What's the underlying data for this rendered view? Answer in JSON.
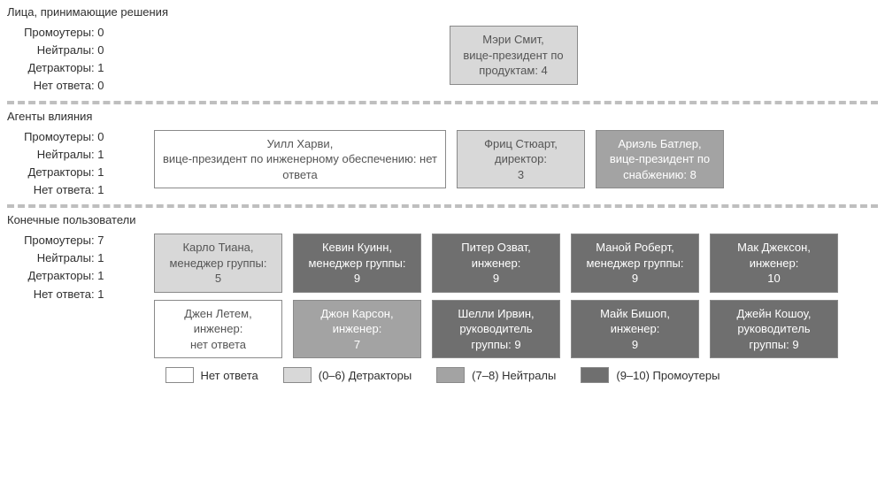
{
  "colors": {
    "no_response": {
      "bg": "#ffffff",
      "fg": "#555555"
    },
    "detractor": {
      "bg": "#d8d8d8",
      "fg": "#555555"
    },
    "neutral": {
      "bg": "#a3a3a3",
      "fg": "#ffffff"
    },
    "promoter": {
      "bg": "#6f6f6f",
      "fg": "#ffffff"
    }
  },
  "stat_labels": {
    "promoters": "Промоутеры",
    "neutrals": "Нейтралы",
    "detractors": "Детракторы",
    "no_response": "Нет ответа"
  },
  "legend": [
    {
      "category": "no_response",
      "label": "Нет ответа"
    },
    {
      "category": "detractor",
      "label": "(0–6) Детракторы"
    },
    {
      "category": "neutral",
      "label": "(7–8) Нейтралы"
    },
    {
      "category": "promoter",
      "label": "(9–10) Промоутеры"
    }
  ],
  "sections": [
    {
      "title": "Лица, принимающие решения",
      "stats": {
        "promoters": 0,
        "neutrals": 0,
        "detractors": 1,
        "no_response": 0
      },
      "center": true,
      "cards": [
        {
          "name": "Мэри Смит,",
          "role_score": "вице-президент по продуктам: 4",
          "category": "detractor"
        }
      ]
    },
    {
      "title": "Агенты влияния",
      "stats": {
        "promoters": 0,
        "neutrals": 1,
        "detractors": 1,
        "no_response": 1
      },
      "center": false,
      "cards": [
        {
          "name": "Уилл Харви,",
          "role_score": "вице-президент по инженерному обеспечению:  нет ответа",
          "category": "no_response",
          "wide": true
        },
        {
          "name": "Фриц Стюарт,",
          "role_score": "директор:",
          "score_line": "3",
          "category": "detractor"
        },
        {
          "name": "Ариэль Батлер,",
          "role_score": "вице-президент по снабжению: 8",
          "category": "neutral"
        }
      ]
    },
    {
      "title": "Конечные пользователи",
      "stats": {
        "promoters": 7,
        "neutrals": 1,
        "detractors": 1,
        "no_response": 1
      },
      "center": false,
      "cards": [
        {
          "name": "Карло Тиана,",
          "role_score": "менеджер группы:",
          "score_line": "5",
          "category": "detractor"
        },
        {
          "name": "Кевин Куинн,",
          "role_score": "менеджер группы:",
          "score_line": "9",
          "category": "promoter"
        },
        {
          "name": "Питер Озват,",
          "role_score": "инженер:",
          "score_line": "9",
          "category": "promoter"
        },
        {
          "name": "Маной Роберт,",
          "role_score": "менеджер группы:",
          "score_line": "9",
          "category": "promoter"
        },
        {
          "name": "Мак Джексон,",
          "role_score": "инженер:",
          "score_line": "10",
          "category": "promoter"
        },
        {
          "name": "Джен Летем,",
          "role_score": "инженер:",
          "score_line": "нет ответа",
          "category": "no_response"
        },
        {
          "name": "Джон Карсон,",
          "role_score": "инженер:",
          "score_line": "7",
          "category": "neutral"
        },
        {
          "name": "Шелли Ирвин,",
          "role_score": "руководитель группы:  9",
          "category": "promoter"
        },
        {
          "name": "Майк Бишоп,",
          "role_score": "инженер:",
          "score_line": "9",
          "category": "promoter"
        },
        {
          "name": "Джейн Кошоу,",
          "role_score": "руководитель группы: 9",
          "category": "promoter"
        }
      ]
    }
  ]
}
